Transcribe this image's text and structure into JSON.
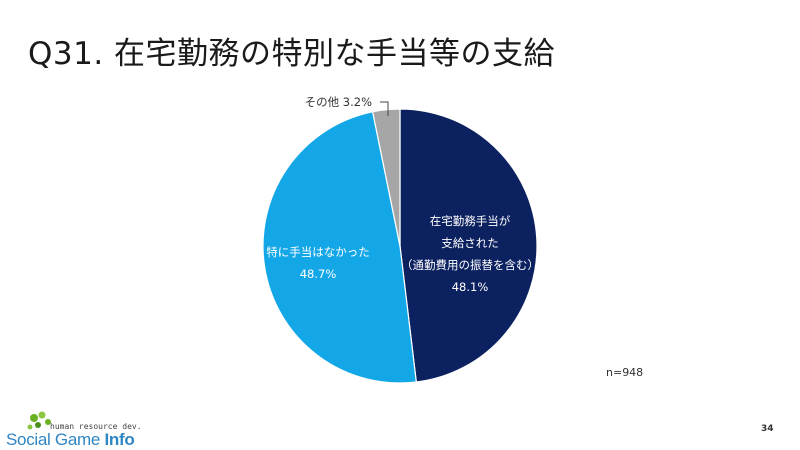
{
  "slide": {
    "title": "Q31. 在宅勤務の特別な手当等の支給",
    "n_label": "n=948",
    "page_number": "34"
  },
  "logo": {
    "tagline": "human resource dev.",
    "word1": "Social Game ",
    "word2": "Info"
  },
  "colors": {
    "navy": "#0c2160",
    "sky": "#14a7e8",
    "gray": "#a6a6a6"
  },
  "chart_data": {
    "type": "pie",
    "start_angle": "12 o'clock, clockwise",
    "slices": [
      {
        "label": [
          "在宅勤務手当が",
          "支給された",
          "（通勤費用の振替を含む）"
        ],
        "value": 48.1,
        "value_label": "48.1%",
        "color": "#0c2160",
        "label_color": "#ffffff"
      },
      {
        "label": [
          "特に手当はなかった"
        ],
        "value": 48.7,
        "value_label": "48.7%",
        "color": "#14a7e8",
        "label_color": "#ffffff"
      },
      {
        "label": [
          "その他"
        ],
        "value": 3.2,
        "value_label": "3.2%",
        "color": "#a6a6a6",
        "label_color": "#333333"
      }
    ]
  }
}
